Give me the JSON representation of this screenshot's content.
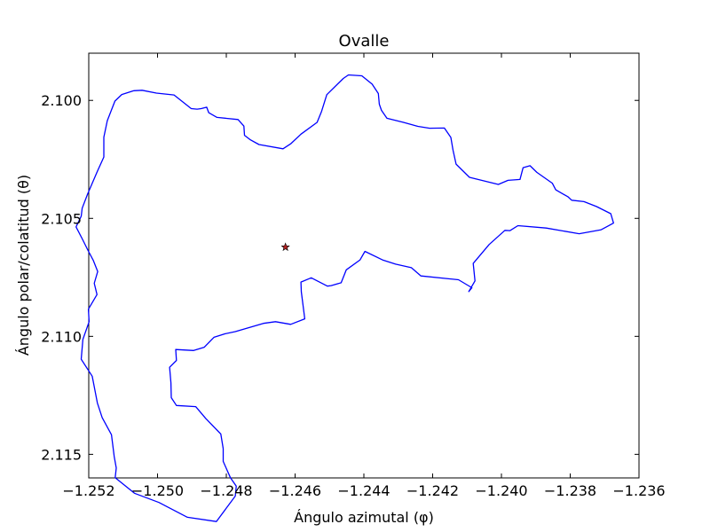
{
  "chart_data": {
    "type": "line",
    "title": "Ovalle",
    "xlabel": "Ángulo azimutal (φ)",
    "ylabel": "Ángulo polar/colatitud (θ)",
    "xlim": [
      -1.252,
      -1.236
    ],
    "ylim": [
      2.116,
      2.098
    ],
    "y_inverted": true,
    "grid": false,
    "xticks": [
      -1.252,
      -1.25,
      -1.248,
      -1.246,
      -1.244,
      -1.242,
      -1.24,
      -1.238,
      -1.236
    ],
    "xtick_labels": [
      "−1.252",
      "−1.250",
      "−1.248",
      "−1.246",
      "−1.244",
      "−1.242",
      "−1.240",
      "−1.238",
      "−1.236"
    ],
    "yticks": [
      2.1,
      2.105,
      2.11,
      2.115
    ],
    "ytick_labels": [
      "2.100",
      "2.105",
      "2.110",
      "2.115"
    ],
    "series": [
      {
        "kind": "boundary-line",
        "color": "#0000ff",
        "x": [
          -1.25069,
          -1.25045,
          -1.25003,
          -1.24952,
          -1.24902,
          -1.24885,
          -1.24873,
          -1.24857,
          -1.24851,
          -1.24827,
          -1.24766,
          -1.24749,
          -1.24747,
          -1.24731,
          -1.24705,
          -1.24635,
          -1.24612,
          -1.24583,
          -1.24536,
          -1.24523,
          -1.24508,
          -1.2446,
          -1.24445,
          -1.24406,
          -1.24376,
          -1.24358,
          -1.24355,
          -1.24349,
          -1.24333,
          -1.24285,
          -1.24243,
          -1.24209,
          -1.24166,
          -1.24147,
          -1.24141,
          -1.24132,
          -1.24093,
          -1.24009,
          -1.23981,
          -1.23946,
          -1.23937,
          -1.23917,
          -1.23897,
          -1.23852,
          -1.23842,
          -1.23806,
          -1.23796,
          -1.2376,
          -1.23723,
          -1.23682,
          -1.23674,
          -1.2371,
          -1.23774,
          -1.2387,
          -1.23952,
          -1.23975,
          -1.2399,
          -1.24036,
          -1.24082,
          -1.24077,
          -1.24095,
          -1.24086,
          -1.24125,
          -1.24234,
          -1.24262,
          -1.24308,
          -1.24346,
          -1.24397,
          -1.24411,
          -1.24451,
          -1.24466,
          -1.24495,
          -1.24506,
          -1.24553,
          -1.24583,
          -1.24582,
          -1.24577,
          -1.24572,
          -1.24613,
          -1.24657,
          -1.24692,
          -1.24774,
          -1.24803,
          -1.24836,
          -1.24864,
          -1.24895,
          -1.24947,
          -1.24945,
          -1.24965,
          -1.24961,
          -1.2496,
          -1.24945,
          -1.24889,
          -1.2486,
          -1.24816,
          -1.24809,
          -1.24809,
          -1.24788,
          -1.24771,
          -1.24774,
          -1.24829,
          -1.24913,
          -1.24996,
          -1.25067,
          -1.25123,
          -1.2512,
          -1.25126,
          -1.25134,
          -1.25161,
          -1.25175,
          -1.2519,
          -1.25222,
          -1.25217,
          -1.25199,
          -1.25201,
          -1.25176,
          -1.25184,
          -1.25174,
          -1.25187,
          -1.25202,
          -1.25218,
          -1.25237,
          -1.25222,
          -1.25219,
          -1.25203,
          -1.25175,
          -1.25156,
          -1.25156,
          -1.25146,
          -1.25124,
          -1.25104,
          -1.25069
        ],
        "y": [
          2.09959,
          2.09957,
          2.09969,
          2.09977,
          2.10035,
          2.10037,
          2.10035,
          2.10029,
          2.10052,
          2.10072,
          2.10081,
          2.10109,
          2.10148,
          2.10166,
          2.10187,
          2.10205,
          2.10183,
          2.10143,
          2.10093,
          2.10047,
          2.09976,
          2.09907,
          2.09892,
          2.09896,
          2.09931,
          2.09971,
          2.10016,
          2.10042,
          2.10076,
          2.10093,
          2.1011,
          2.10118,
          2.10117,
          2.10157,
          2.1021,
          2.1027,
          2.10326,
          2.10356,
          2.10339,
          2.10335,
          2.10285,
          2.10277,
          2.10305,
          2.10351,
          2.10379,
          2.10409,
          2.10423,
          2.10429,
          2.1045,
          2.1048,
          2.1052,
          2.10548,
          2.10565,
          2.10541,
          2.10531,
          2.10552,
          2.10551,
          2.10611,
          2.10691,
          2.10765,
          2.1081,
          2.10794,
          2.1076,
          2.10744,
          2.10709,
          2.10694,
          2.10676,
          2.1064,
          2.10676,
          2.10718,
          2.10773,
          2.10785,
          2.10787,
          2.10752,
          2.1077,
          2.10811,
          2.10867,
          2.10926,
          2.10949,
          2.10938,
          2.10945,
          2.1098,
          2.10989,
          2.11004,
          2.11046,
          2.1106,
          2.11056,
          2.11102,
          2.11131,
          2.11197,
          2.1126,
          2.11293,
          2.11298,
          2.11348,
          2.11414,
          2.11476,
          2.1153,
          2.11599,
          2.11635,
          2.11677,
          2.11785,
          2.11767,
          2.11704,
          2.11665,
          2.11599,
          2.11558,
          2.1151,
          2.11417,
          2.11344,
          2.11282,
          2.11169,
          2.11097,
          2.11013,
          2.10938,
          2.10885,
          2.10823,
          2.10775,
          2.10725,
          2.10677,
          2.10636,
          2.10589,
          2.10536,
          2.10491,
          2.10457,
          2.10396,
          2.10301,
          2.1024,
          2.10156,
          2.10086,
          2.10003,
          2.09975,
          2.09959
        ]
      },
      {
        "kind": "marker",
        "label": "",
        "marker": "star",
        "color": "#b22222",
        "x": [
          -1.24628
        ],
        "y": [
          2.10622
        ]
      }
    ]
  }
}
